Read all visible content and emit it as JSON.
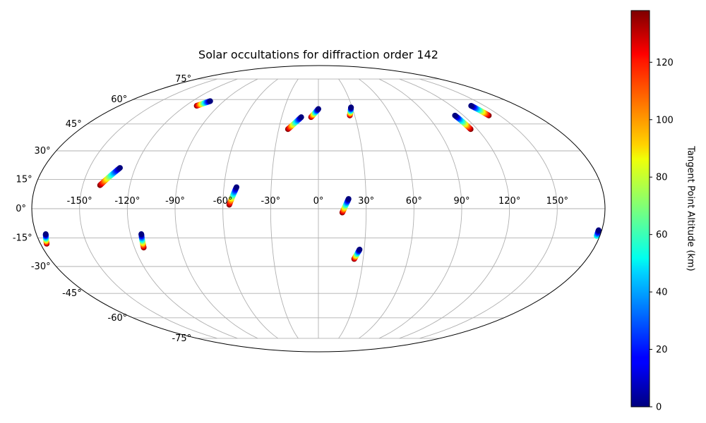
{
  "chart_data": {
    "type": "scatter",
    "projection": "mollweide",
    "title": "Solar occultations for diffraction order 142",
    "longitude_ticks": [
      "-150°",
      "-120°",
      "-90°",
      "-60°",
      "-30°",
      "0°",
      "30°",
      "60°",
      "90°",
      "120°",
      "150°"
    ],
    "latitude_ticks": [
      "75°",
      "60°",
      "45°",
      "30°",
      "15°",
      "0°",
      "-15°",
      "-30°",
      "-45°",
      "-60°",
      "-75°"
    ],
    "grid": true,
    "colorbar": {
      "label": "Tangent Point Altitude (km)",
      "colormap": "jet",
      "range": [
        0,
        138
      ],
      "ticks": [
        "0",
        "20",
        "40",
        "60",
        "80",
        "100",
        "120"
      ]
    },
    "color_scale": "altitude in km",
    "tracks": [
      {
        "start_lon": -103,
        "start_lat": 59,
        "start_alt": 0,
        "end_lon": -110,
        "end_lat": 56,
        "end_alt": 138
      },
      {
        "start_lon": -130,
        "start_lat": 21,
        "start_alt": 0,
        "end_lon": -139,
        "end_lat": 12,
        "end_alt": 138
      },
      {
        "start_lon": -174,
        "start_lat": -13,
        "start_alt": 0,
        "end_lon": -176,
        "end_lat": -18,
        "end_alt": 138
      },
      {
        "start_lon": -113,
        "start_lat": -13,
        "start_alt": 0,
        "end_lon": -114,
        "end_lat": -20,
        "end_alt": 138
      },
      {
        "start_lon": -52,
        "start_lat": 11,
        "start_alt": 0,
        "end_lon": -56,
        "end_lat": 2,
        "end_alt": 138
      },
      {
        "start_lon": -14,
        "start_lat": 49,
        "start_alt": 0,
        "end_lon": -23,
        "end_lat": 42,
        "end_alt": 138
      },
      {
        "start_lon": 0,
        "start_lat": 54,
        "start_alt": 0,
        "end_lon": -6,
        "end_lat": 49,
        "end_alt": 138
      },
      {
        "start_lon": 29,
        "start_lat": 55,
        "start_alt": 0,
        "end_lon": 26,
        "end_lat": 50,
        "end_alt": 138
      },
      {
        "start_lon": 19,
        "start_lat": 5,
        "start_alt": 0,
        "end_lon": 15,
        "end_lat": -2,
        "end_alt": 138
      },
      {
        "start_lon": 27,
        "start_lat": -21,
        "start_alt": 0,
        "end_lon": 24,
        "end_lat": -26,
        "end_alt": 138
      },
      {
        "start_lon": 113,
        "start_lat": 50,
        "start_alt": 0,
        "end_lon": 115,
        "end_lat": 42,
        "end_alt": 138
      },
      {
        "start_lon": 138,
        "start_lat": 56,
        "start_alt": 0,
        "end_lon": 141,
        "end_lat": 50,
        "end_alt": 138
      },
      {
        "start_lon": 178,
        "start_lat": -11,
        "start_alt": 0,
        "end_lon": 178,
        "end_lat": -14,
        "end_alt": 60
      }
    ]
  }
}
